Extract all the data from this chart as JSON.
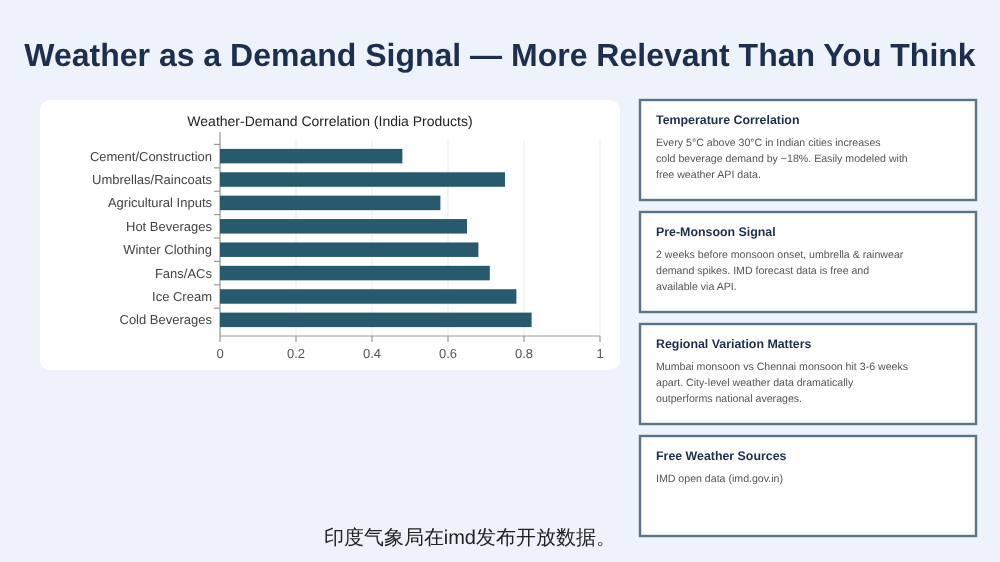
{
  "chart_data": {
    "type": "bar",
    "orientation": "horizontal",
    "title": "Weather as a Demand Signal — More Relevant Than You Think",
    "subtitle": "Weather-Demand Correlation (India Products)",
    "categories": [
      "Cement/Construction",
      "Umbrellas/Raincoats",
      "Agricultural Inputs",
      "Hot Beverages",
      "Winter Clothing",
      "Fans/ACs",
      "Ice Cream",
      "Cold Beverages"
    ],
    "values": [
      0.48,
      0.75,
      0.58,
      0.65,
      0.68,
      0.71,
      0.78,
      0.82
    ],
    "color": "#285a6e",
    "xlim": [
      0,
      1
    ],
    "xticks": [
      0,
      0.2,
      0.4,
      0.6,
      0.8,
      1
    ],
    "grid": "x",
    "annotations": [
      "Temperature Correlation",
      "Every 5°C above 30°C in Indian cities increases cold beverage demand by ~18%. Easily modeled with free weather API data.",
      "Pre-Monsoon Signal",
      "2 weeks before monsoon onset, umbrella & rainwear demand spikes. IMD forecast data is free and available via API.",
      "Regional Variation Matters",
      "Mumbai monsoon vs Chennai monsoon hit 3-6 weeks apart. City-level weather data dramatically outperforms national averages.",
      "Free Weather Sources",
      "IMD open data (imd.gov.in)",
      "印度气象局在imd发布开放数据。"
    ]
  }
}
